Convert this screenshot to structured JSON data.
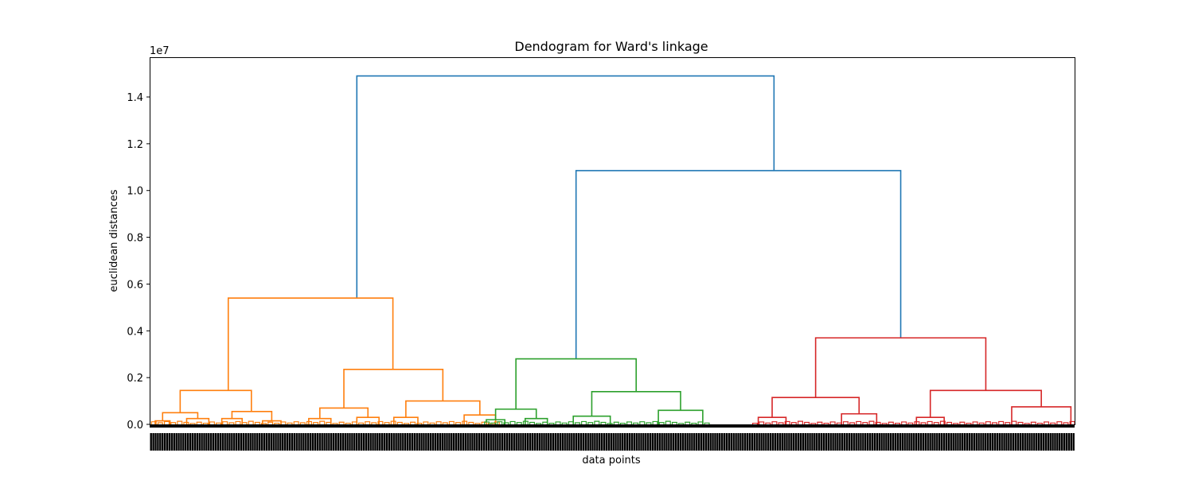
{
  "chart_data": {
    "type": "dendrogram",
    "title": "Dendogram for Ward's linkage",
    "xlabel": "data points",
    "ylabel": "euclidean distances",
    "y_offset_label": "1e7",
    "ylim": [
      0,
      1.57
    ],
    "y_ticks": [
      0.0,
      0.2,
      0.4,
      0.6,
      0.8,
      1.0,
      1.2,
      1.4
    ],
    "y_tick_labels": [
      "0.0",
      "0.2",
      "0.4",
      "0.6",
      "0.8",
      "1.0",
      "1.2",
      "1.4"
    ],
    "leaf_span": [
      0,
      1000
    ],
    "colors": {
      "root": "#1f77b4",
      "cluster_1": "#ff7f0e",
      "cluster_2": "#2ca02c",
      "cluster_3": "#d62728"
    },
    "merges": [
      {
        "c": "root",
        "xl": 224,
        "xr": 675,
        "h": 1.49,
        "bl": 0.54,
        "br": 1.085
      },
      {
        "c": "root",
        "xl": 461,
        "xr": 812,
        "h": 1.085,
        "bl": 0.28,
        "br": 0.37
      },
      {
        "c": "cluster_1",
        "xl": 85,
        "xr": 263,
        "h": 0.54,
        "bl": 0.145,
        "br": 0.235
      },
      {
        "c": "cluster_1",
        "xl": 33,
        "xr": 110,
        "h": 0.145,
        "bl": 0.05,
        "br": 0.055
      },
      {
        "c": "cluster_1",
        "xl": 210,
        "xr": 317,
        "h": 0.235,
        "bl": 0.07,
        "br": 0.1
      },
      {
        "c": "cluster_1",
        "xl": 14,
        "xr": 52,
        "h": 0.05,
        "bl": 0.015,
        "br": 0.025
      },
      {
        "c": "cluster_1",
        "xl": 89,
        "xr": 132,
        "h": 0.055,
        "bl": 0.025,
        "br": 0.015
      },
      {
        "c": "cluster_1",
        "xl": 184,
        "xr": 236,
        "h": 0.07,
        "bl": 0.025,
        "br": 0.03
      },
      {
        "c": "cluster_1",
        "xl": 277,
        "xr": 357,
        "h": 0.1,
        "bl": 0.03,
        "br": 0.04
      },
      {
        "c": "cluster_1",
        "xl": 6,
        "xr": 22,
        "h": 0.015,
        "bl": 0,
        "br": 0
      },
      {
        "c": "cluster_1",
        "xl": 40,
        "xr": 64,
        "h": 0.025,
        "bl": 0,
        "br": 0
      },
      {
        "c": "cluster_1",
        "xl": 78,
        "xr": 100,
        "h": 0.025,
        "bl": 0,
        "br": 0
      },
      {
        "c": "cluster_1",
        "xl": 122,
        "xr": 142,
        "h": 0.015,
        "bl": 0,
        "br": 0
      },
      {
        "c": "cluster_1",
        "xl": 172,
        "xr": 196,
        "h": 0.025,
        "bl": 0,
        "br": 0
      },
      {
        "c": "cluster_1",
        "xl": 224,
        "xr": 248,
        "h": 0.03,
        "bl": 0,
        "br": 0
      },
      {
        "c": "cluster_1",
        "xl": 264,
        "xr": 290,
        "h": 0.03,
        "bl": 0,
        "br": 0
      },
      {
        "c": "cluster_1",
        "xl": 340,
        "xr": 374,
        "h": 0.04,
        "bl": 0,
        "br": 0
      },
      {
        "c": "cluster_2",
        "xl": 396,
        "xr": 526,
        "h": 0.28,
        "bl": 0.065,
        "br": 0.14
      },
      {
        "c": "cluster_2",
        "xl": 374,
        "xr": 418,
        "h": 0.065,
        "bl": 0.02,
        "br": 0.025
      },
      {
        "c": "cluster_2",
        "xl": 478,
        "xr": 574,
        "h": 0.14,
        "bl": 0.035,
        "br": 0.06
      },
      {
        "c": "cluster_2",
        "xl": 364,
        "xr": 384,
        "h": 0.02,
        "bl": 0,
        "br": 0
      },
      {
        "c": "cluster_2",
        "xl": 406,
        "xr": 430,
        "h": 0.025,
        "bl": 0,
        "br": 0
      },
      {
        "c": "cluster_2",
        "xl": 458,
        "xr": 498,
        "h": 0.035,
        "bl": 0,
        "br": 0
      },
      {
        "c": "cluster_2",
        "xl": 550,
        "xr": 598,
        "h": 0.06,
        "bl": 0,
        "br": 0
      },
      {
        "c": "cluster_3",
        "xl": 720,
        "xr": 904,
        "h": 0.37,
        "bl": 0.115,
        "br": 0.145
      },
      {
        "c": "cluster_3",
        "xl": 673,
        "xr": 767,
        "h": 0.115,
        "bl": 0.03,
        "br": 0.045
      },
      {
        "c": "cluster_3",
        "xl": 844,
        "xr": 964,
        "h": 0.145,
        "bl": 0.03,
        "br": 0.075
      },
      {
        "c": "cluster_3",
        "xl": 658,
        "xr": 688,
        "h": 0.03,
        "bl": 0,
        "br": 0
      },
      {
        "c": "cluster_3",
        "xl": 748,
        "xr": 786,
        "h": 0.045,
        "bl": 0,
        "br": 0
      },
      {
        "c": "cluster_3",
        "xl": 829,
        "xr": 859,
        "h": 0.03,
        "bl": 0,
        "br": 0
      },
      {
        "c": "cluster_3",
        "xl": 932,
        "xr": 996,
        "h": 0.075,
        "bl": 0,
        "br": 0
      }
    ]
  }
}
